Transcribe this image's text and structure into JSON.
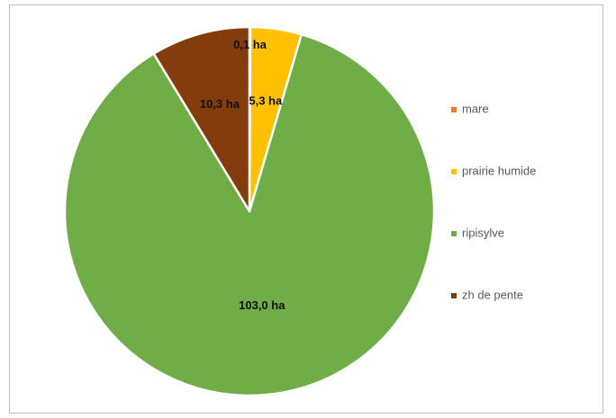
{
  "chart_data": {
    "type": "pie",
    "title": "",
    "series": [
      {
        "values": [
          0.1,
          5.3,
          103.0,
          10.3
        ]
      }
    ],
    "categories": [
      "mare",
      "prairie humide",
      "ripisylve",
      "zh de pente"
    ],
    "slices": [
      {
        "name": "mare",
        "value": 0.1,
        "label": "0,1 ha",
        "color": "#ED7D31"
      },
      {
        "name": "prairie humide",
        "value": 5.3,
        "label": "5,3 ha",
        "color": "#FFC000"
      },
      {
        "name": "ripisylve",
        "value": 103.0,
        "label": "103,0 ha",
        "color": "#70AD47"
      },
      {
        "name": "zh de pente",
        "value": 10.3,
        "label": "10,3 ha",
        "color": "#843C0C"
      }
    ],
    "legend_position": "right",
    "start_angle_deg": 0,
    "direction": "clockwise"
  }
}
